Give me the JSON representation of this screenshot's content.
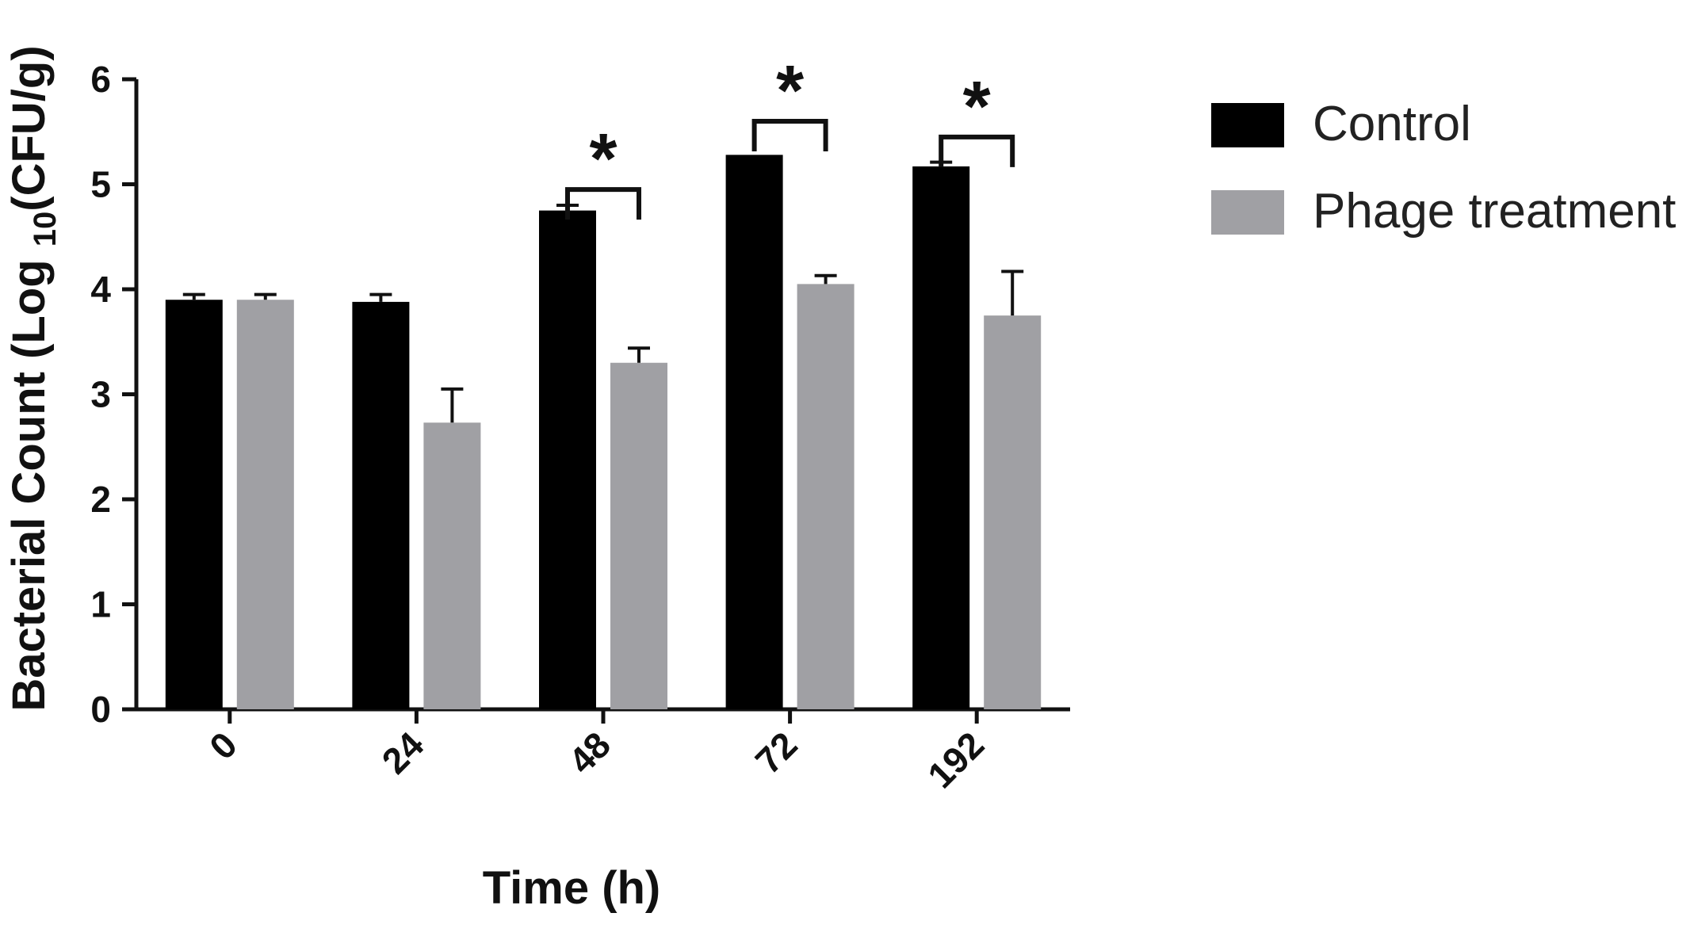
{
  "chart_data": {
    "type": "bar",
    "title": "",
    "xlabel": "Time (h)",
    "ylabel": {
      "prefix": "Bacterial Count (Log ",
      "subscript": "10",
      "suffix": "(CFU/g)"
    },
    "ylim": [
      0,
      6
    ],
    "yticks": [
      "0",
      "1",
      "2",
      "3",
      "4",
      "5",
      "6"
    ],
    "categories": [
      "0",
      "24",
      "48",
      "72",
      "192"
    ],
    "grid": false,
    "legend_position": "top-right",
    "series": [
      {
        "name": "Control",
        "color": "#000000",
        "values": [
          3.9,
          3.88,
          4.75,
          5.28,
          5.17
        ],
        "errors": [
          0.05,
          0.07,
          0.05,
          0.0,
          0.04
        ]
      },
      {
        "name": "Phage treatment",
        "color": "#a0a0a4",
        "values": [
          3.9,
          2.73,
          3.3,
          4.05,
          3.75
        ],
        "errors": [
          0.05,
          0.32,
          0.14,
          0.08,
          0.42
        ]
      }
    ],
    "significance": [
      {
        "category": "48",
        "label": "*",
        "bracket_y": 4.95
      },
      {
        "category": "72",
        "label": "*",
        "bracket_y": 5.6
      },
      {
        "category": "192",
        "label": "*",
        "bracket_y": 5.45
      }
    ]
  }
}
